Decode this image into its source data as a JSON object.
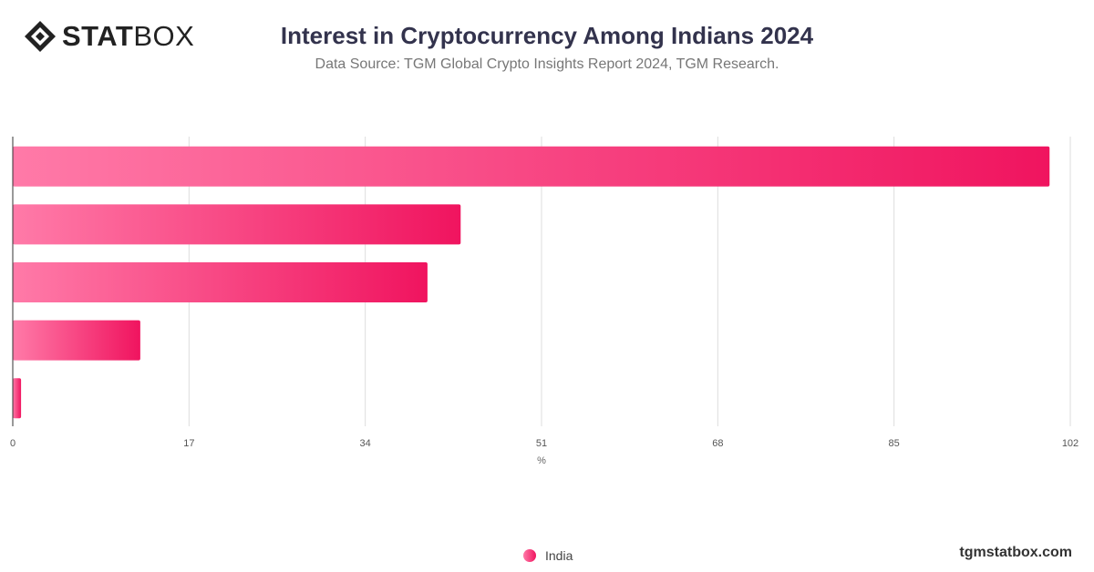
{
  "brand": {
    "logo_bold": "STAT",
    "logo_light": "BOX",
    "footer": "tgmstatbox.com"
  },
  "chart_data": {
    "type": "bar",
    "orientation": "horizontal",
    "title": "Interest in Cryptocurrency Among Indians 2024",
    "subtitle": "Data Source: TGM Global Crypto Insights Report 2024, TGM Research.",
    "xlabel": "%",
    "xlim": [
      0,
      102
    ],
    "ticks": [
      0,
      17,
      34,
      51,
      68,
      85,
      102
    ],
    "tick_labels": [
      "0",
      "17",
      "34",
      "51",
      "68",
      "85",
      "102"
    ],
    "grid": true,
    "legend_position": "bottom-center",
    "series": [
      {
        "name": "India",
        "values": [
          100,
          43.2,
          40,
          12.3,
          0.8
        ]
      }
    ],
    "colors": {
      "bar_start": "#ff7aa8",
      "bar_end": "#f0145f",
      "grid": "#dddddd",
      "axis": "#333333"
    }
  }
}
